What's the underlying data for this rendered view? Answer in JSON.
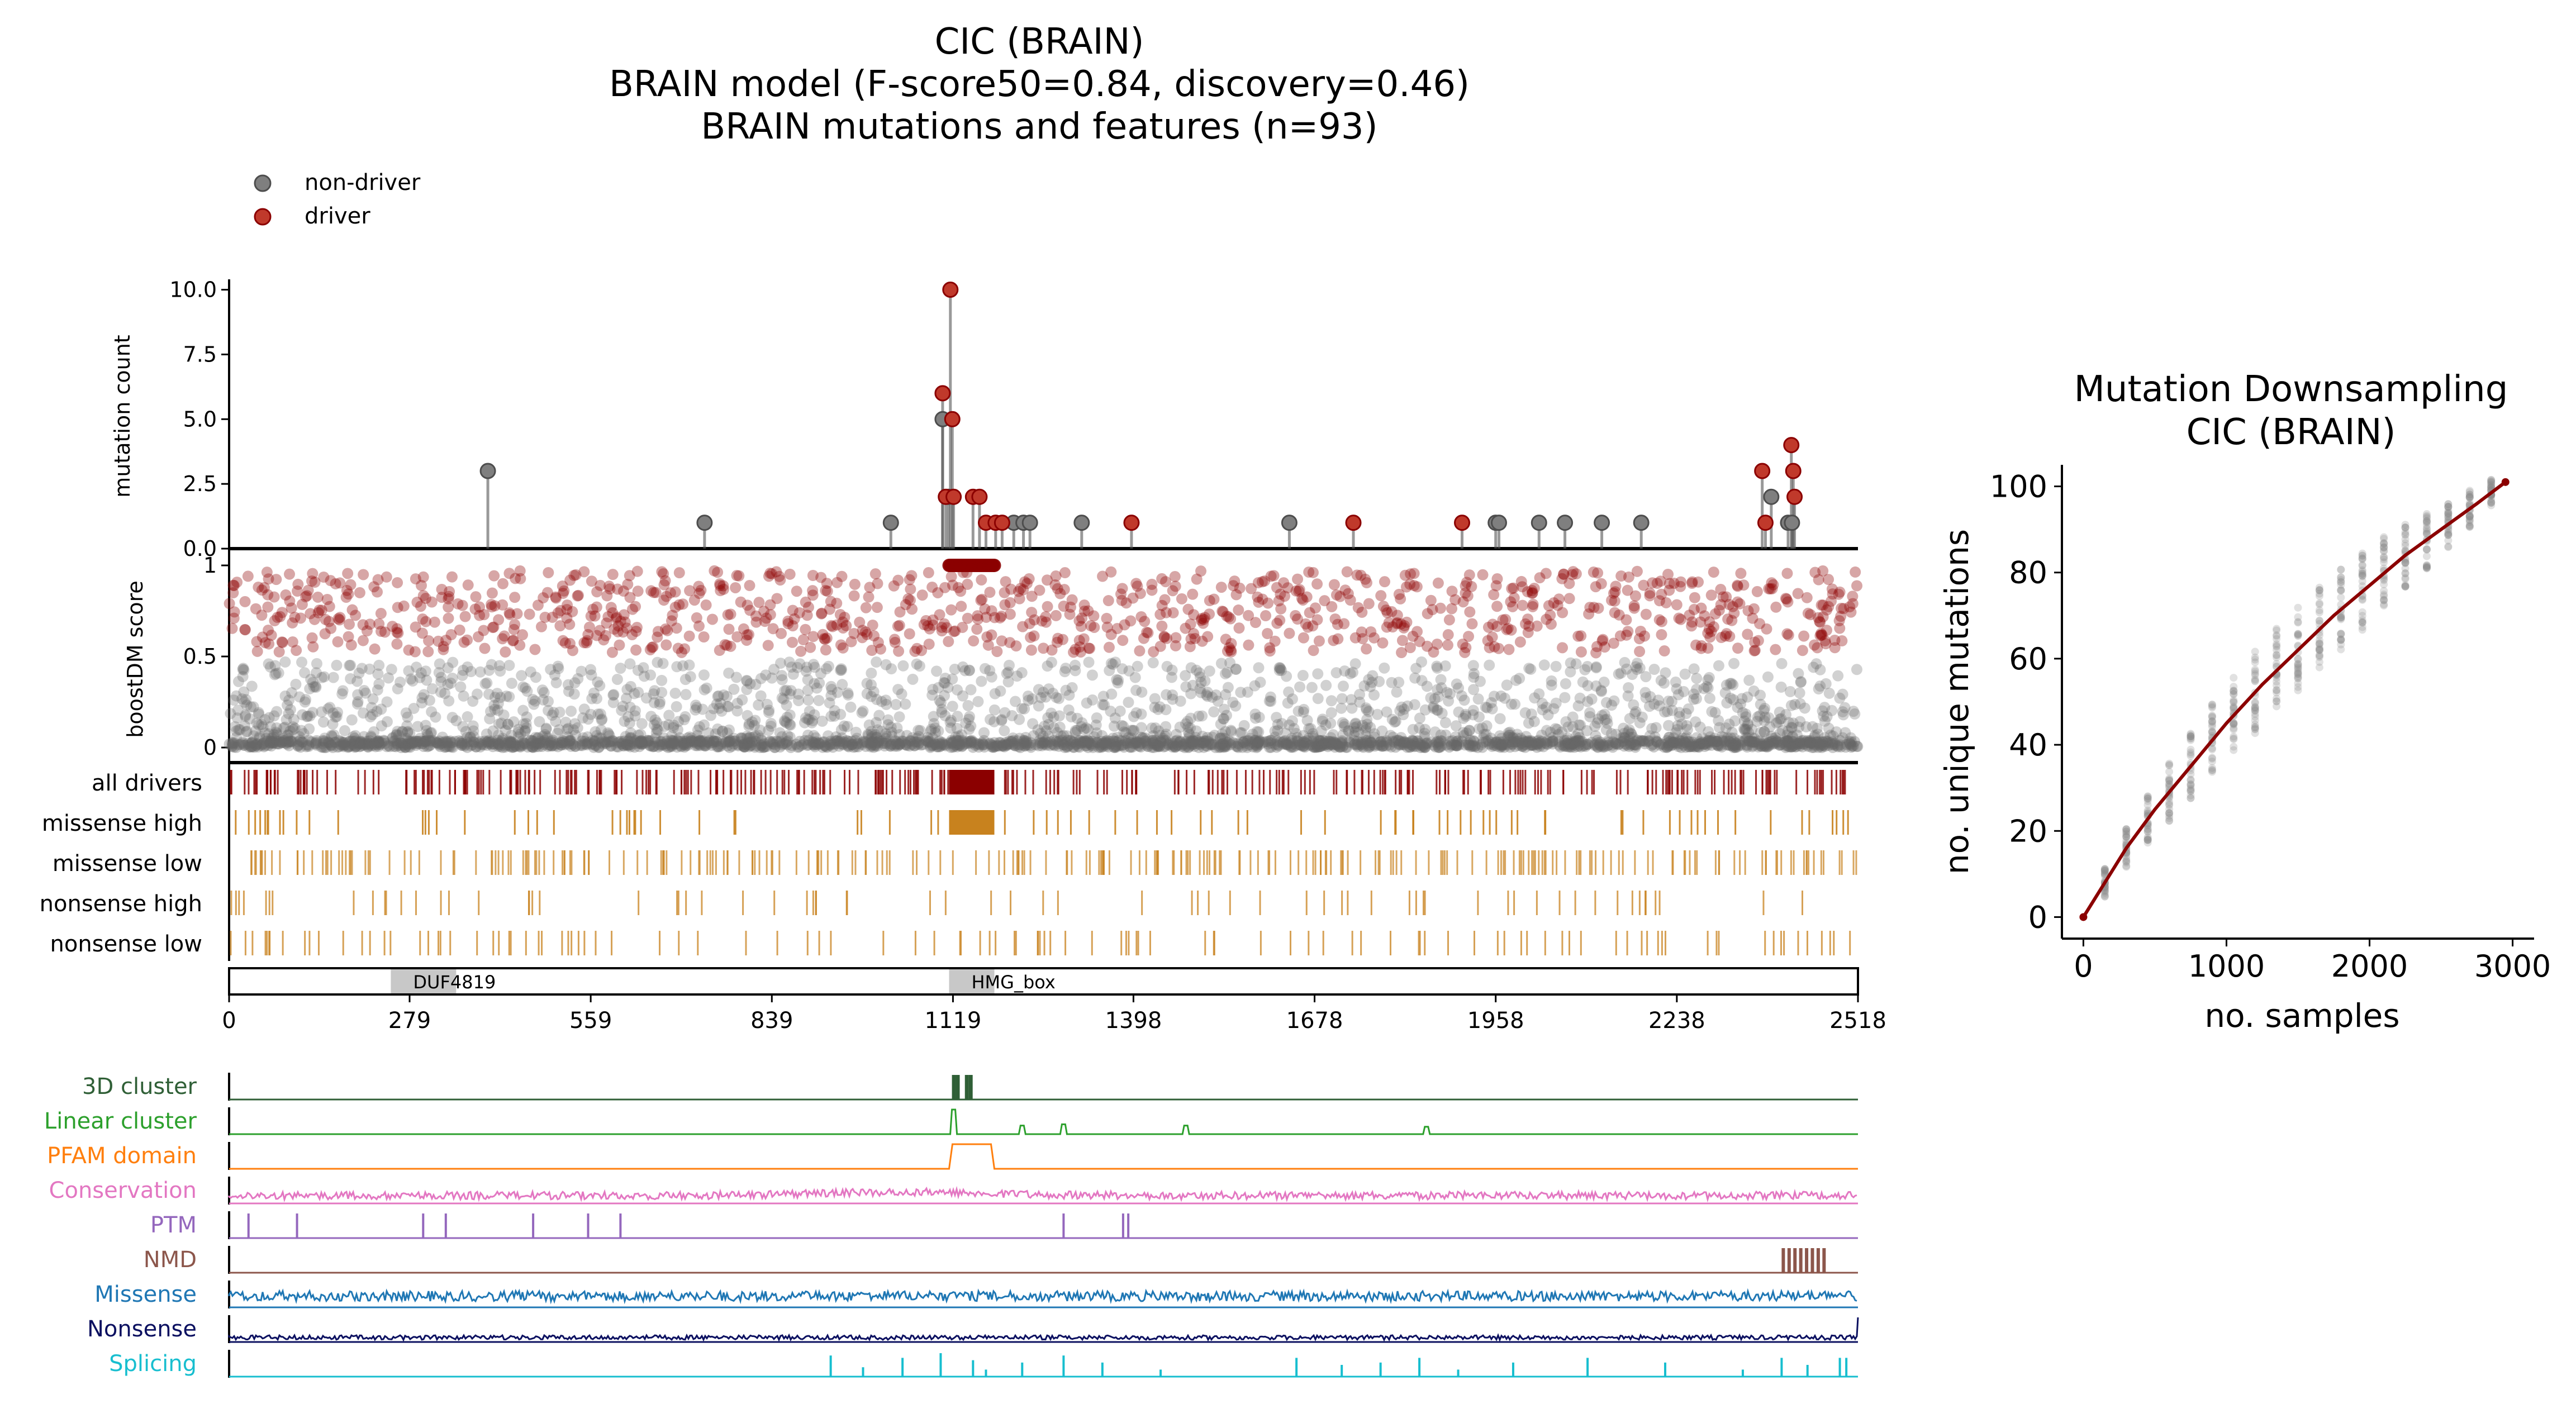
{
  "title_lines": [
    "CIC (BRAIN)",
    "BRAIN model (F-score50=0.84, discovery=0.46)",
    "BRAIN mutations and features (n=93)"
  ],
  "colors": {
    "non_driver": "#7f7f7f",
    "driver": "#c0392b",
    "driver_dark": "#8b0000",
    "missense": "#c8821e",
    "domain_fill": "#c8c8c8",
    "cluster3d": "#2f5f36",
    "linear": "#2ca02c",
    "pfam": "#ff7f0e",
    "conservation": "#e377c2",
    "ptm": "#9467bd",
    "nmd": "#8c564b",
    "missense_track": "#1f77b4",
    "nonsense_track": "#0b1060",
    "splicing": "#17becf"
  },
  "legend": {
    "non_driver": "non-driver",
    "driver": "driver"
  },
  "chart_data": [
    {
      "type": "scatter",
      "name": "needle plot",
      "ylabel": "mutation count",
      "ylim": [
        0,
        10.4
      ],
      "yticks": [
        "0.0",
        "2.5",
        "5.0",
        "7.5",
        "10.0"
      ],
      "ytick_values": [
        0,
        2.5,
        5,
        7.5,
        10
      ],
      "non_driver": [
        [
          400,
          3
        ],
        [
          735,
          1
        ],
        [
          1023,
          1
        ],
        [
          1103,
          5
        ],
        [
          1112,
          2
        ],
        [
          1213,
          1
        ],
        [
          1228,
          1
        ],
        [
          1238,
          1
        ],
        [
          1318,
          1
        ],
        [
          1639,
          1
        ],
        [
          1958,
          1
        ],
        [
          1963,
          1
        ],
        [
          2025,
          1
        ],
        [
          2065,
          1
        ],
        [
          2122,
          1
        ],
        [
          2183,
          1
        ],
        [
          2384,
          2
        ],
        [
          2410,
          1
        ],
        [
          2416,
          1
        ]
      ],
      "driver": [
        [
          1103,
          6
        ],
        [
          1108,
          2
        ],
        [
          1115,
          10
        ],
        [
          1118,
          5
        ],
        [
          1120,
          2
        ],
        [
          1150,
          2
        ],
        [
          1160,
          2
        ],
        [
          1170,
          1
        ],
        [
          1185,
          1
        ],
        [
          1195,
          1
        ],
        [
          1395,
          1
        ],
        [
          1738,
          1
        ],
        [
          1906,
          1
        ],
        [
          2370,
          3
        ],
        [
          2375,
          1
        ],
        [
          2415,
          4
        ],
        [
          2418,
          3
        ],
        [
          2420,
          2
        ]
      ]
    },
    {
      "type": "scatter",
      "name": "boostDM score",
      "ylabel": "boostDM score",
      "ylim": [
        0,
        1
      ],
      "yticks": [
        "0",
        "0.5",
        "1"
      ],
      "ytick_values": [
        0,
        0.5,
        1
      ],
      "driver_threshold": 0.5
    },
    {
      "type": "table",
      "name": "feature tracks",
      "rows": [
        "all drivers",
        "missense high",
        "missense low",
        "nonsense high",
        "nonsense low"
      ]
    },
    {
      "type": "bar",
      "name": "protein domains",
      "xlim": [
        0,
        2518
      ],
      "xticks": [
        "0",
        "279",
        "559",
        "839",
        "1119",
        "1398",
        "1678",
        "1958",
        "2238",
        "2518"
      ],
      "xtick_values": [
        0,
        279,
        559,
        839,
        1119,
        1398,
        1678,
        1958,
        2238,
        2518
      ],
      "domains": [
        {
          "name": "DUF4819",
          "start": 250,
          "end": 351
        },
        {
          "name": "HMG_box",
          "start": 1113,
          "end": 1183
        }
      ]
    },
    {
      "type": "line",
      "name": "feature signals",
      "tracks": [
        "3D cluster",
        "Linear cluster",
        "PFAM domain",
        "Conservation",
        "PTM",
        "NMD",
        "Missense",
        "Nonsense",
        "Splicing"
      ],
      "cluster3d_positions": [
        1120,
        1126,
        1140,
        1146
      ],
      "linear_peaks": [
        [
          1120,
          1.0
        ],
        [
          1226,
          0.35
        ],
        [
          1290,
          0.4
        ],
        [
          1479,
          0.35
        ],
        [
          1851,
          0.3
        ]
      ],
      "pfam_range": [
        1113,
        1183
      ],
      "ptm_positions": [
        30,
        105,
        300,
        335,
        470,
        555,
        605,
        1290,
        1382,
        1390
      ],
      "nmd_range": [
        2400,
        2470
      ],
      "splicing_peaks": [
        [
          930,
          0.9
        ],
        [
          980,
          0.4
        ],
        [
          1041,
          0.8
        ],
        [
          1100,
          1.0
        ],
        [
          1150,
          0.7
        ],
        [
          1170,
          0.3
        ],
        [
          1226,
          0.6
        ],
        [
          1290,
          0.9
        ],
        [
          1350,
          0.6
        ],
        [
          1440,
          0.3
        ],
        [
          1650,
          0.8
        ],
        [
          1720,
          0.5
        ],
        [
          1780,
          0.6
        ],
        [
          1840,
          0.8
        ],
        [
          1900,
          0.3
        ],
        [
          1985,
          0.6
        ],
        [
          2100,
          0.8
        ],
        [
          2220,
          0.6
        ],
        [
          2340,
          0.3
        ],
        [
          2400,
          0.8
        ],
        [
          2440,
          0.5
        ],
        [
          2490,
          0.8
        ],
        [
          2500,
          0.8
        ]
      ]
    },
    {
      "type": "scatter",
      "name": "downsampling",
      "title_lines": [
        "Mutation Downsampling",
        "CIC (BRAIN)"
      ],
      "xlabel": "no. samples",
      "ylabel": "no. unique mutations",
      "xlim": [
        -150,
        3150
      ],
      "ylim": [
        -5,
        105
      ],
      "xticks": [
        "0",
        "1000",
        "2000",
        "3000"
      ],
      "xtick_values": [
        0,
        1000,
        2000,
        3000
      ],
      "yticks": [
        "0",
        "20",
        "40",
        "60",
        "80",
        "100"
      ],
      "ytick_values": [
        0,
        20,
        40,
        60,
        80,
        100
      ],
      "mean_curve": [
        [
          0,
          0
        ],
        [
          150,
          8
        ],
        [
          300,
          16
        ],
        [
          500,
          25
        ],
        [
          750,
          35
        ],
        [
          1000,
          45
        ],
        [
          1250,
          54
        ],
        [
          1500,
          62
        ],
        [
          1750,
          70
        ],
        [
          2000,
          77
        ],
        [
          2250,
          84
        ],
        [
          2500,
          90
        ],
        [
          2750,
          96
        ],
        [
          2950,
          101
        ]
      ]
    }
  ]
}
